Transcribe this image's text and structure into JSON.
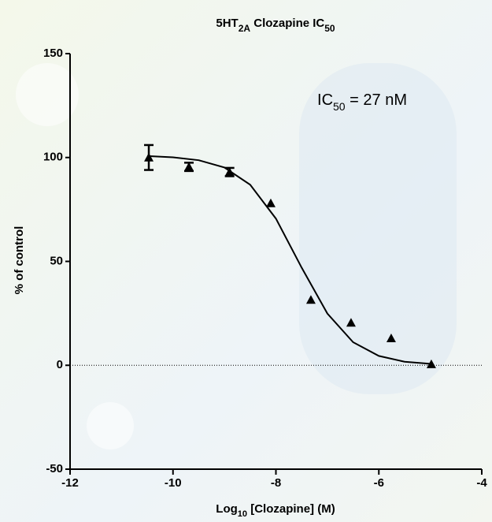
{
  "chart_data": {
    "type": "scatter",
    "title_parts": [
      "5HT",
      "2A",
      " Clozapine IC",
      "50"
    ],
    "annotation_parts": [
      "IC",
      "50",
      " = 27 nM"
    ],
    "x_label_parts": [
      "Log",
      "10",
      " [Clozapine] (M)"
    ],
    "y_label": "% of control",
    "xlim": [
      -12,
      -4
    ],
    "xticks": [
      -12,
      -10,
      -8,
      -6,
      -4
    ],
    "ylim": [
      -50,
      150
    ],
    "yticks": [
      -50,
      0,
      50,
      100,
      150
    ],
    "zero_line": true,
    "series": [
      {
        "kind": "points",
        "color": "#000000",
        "x": [
          -10.47,
          -9.69,
          -8.9,
          -8.1,
          -7.32,
          -6.54,
          -5.76,
          -4.98
        ],
        "values": [
          100,
          95.5,
          93,
          78,
          31.5,
          20.5,
          13,
          0.5
        ],
        "errors": [
          6,
          2,
          2,
          null,
          null,
          null,
          null,
          null
        ]
      },
      {
        "kind": "curve",
        "color": "#000000",
        "x": [
          -10.5,
          -10,
          -9.5,
          -9,
          -8.5,
          -8,
          -7.5,
          -7,
          -6.5,
          -6,
          -5.5,
          -5
        ],
        "values": [
          100.7,
          100.1,
          98.7,
          95.2,
          86.9,
          70.6,
          47.0,
          24.9,
          11.1,
          4.5,
          1.7,
          0.7
        ]
      }
    ]
  }
}
